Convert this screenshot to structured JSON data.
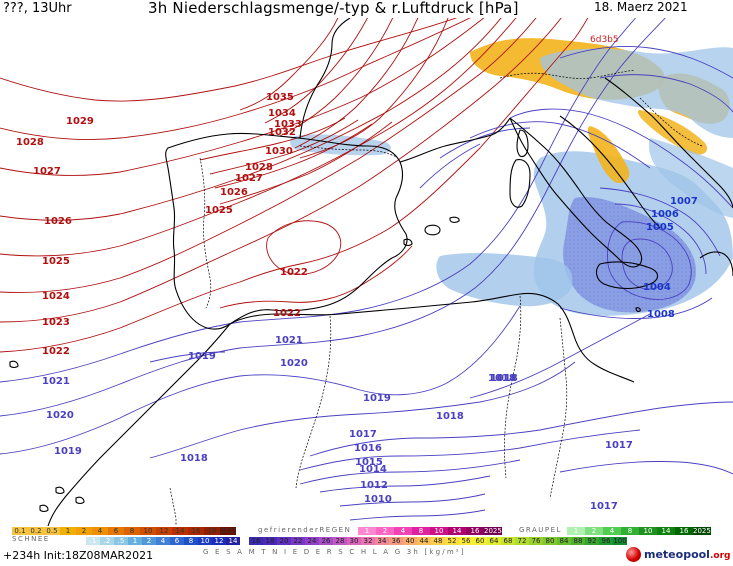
{
  "header": {
    "top_left": "???, 13Uhr",
    "title": "3h Niederschlagsmenge/-typ & r.Luftdruck [hPa]",
    "date": "18. Maerz 2021"
  },
  "map": {
    "high_label": "6d3b5",
    "isobar_labels_red": [
      "1035",
      "1034",
      "1033",
      "1032",
      "1030",
      "1029",
      "1028",
      "1027",
      "1026",
      "1025",
      "1024",
      "1023",
      "1022",
      "1028",
      "1027",
      "1026",
      "1025",
      "1022",
      "1022"
    ],
    "isobar_labels_blue": [
      "1021",
      "1020",
      "1019",
      "1019",
      "1018",
      "1018",
      "1017",
      "1016",
      "1015",
      "1014",
      "1012",
      "1010",
      "1017",
      "1017",
      "1018",
      "1007",
      "1006",
      "1005",
      "1004",
      "1008",
      "1021",
      "1020",
      "1019",
      "1018"
    ]
  },
  "legend": {
    "snow_label": "SCHNEE",
    "freezing_rain_label": "gefrierenderREGEN",
    "graupel_label": "GRAUPEL",
    "total_label": "G E S A M T N I E D E R S C H L A G  3h  [kg/m²]",
    "rain_scale": [
      {
        "t": "0.1",
        "c": "#f5c242"
      },
      {
        "t": "0.2",
        "c": "#f5c242"
      },
      {
        "t": "0.5",
        "c": "#f5c242"
      },
      {
        "t": "1",
        "c": "#f0b000"
      },
      {
        "t": "2",
        "c": "#f0a000"
      },
      {
        "t": "4",
        "c": "#ec9000"
      },
      {
        "t": "6",
        "c": "#e47800"
      },
      {
        "t": "8",
        "c": "#dc6400"
      },
      {
        "t": "10",
        "c": "#d05000"
      },
      {
        "t": "12",
        "c": "#c84000"
      },
      {
        "t": "14",
        "c": "#b83000"
      },
      {
        "t": "16",
        "c": "#a82800"
      },
      {
        "t": "18",
        "c": "#902000"
      },
      {
        "t": "2025+",
        "c": "#6a1000"
      }
    ],
    "freezing_scale": [
      {
        "t": "1",
        "c": "#ff88d0"
      },
      {
        "t": "2",
        "c": "#ff66c4"
      },
      {
        "t": "4",
        "c": "#f044b4"
      },
      {
        "t": "8",
        "c": "#e022a0"
      },
      {
        "t": "10",
        "c": "#cc1088"
      },
      {
        "t": "14",
        "c": "#b00070"
      },
      {
        "t": "16",
        "c": "#900060"
      },
      {
        "t": "2025+",
        "c": "#700050"
      }
    ],
    "graupel_scale": [
      {
        "t": "1",
        "c": "#b0f0b0"
      },
      {
        "t": "2",
        "c": "#80e080"
      },
      {
        "t": "4",
        "c": "#50cc50"
      },
      {
        "t": "8",
        "c": "#30b030"
      },
      {
        "t": "10",
        "c": "#209020"
      },
      {
        "t": "14",
        "c": "#108010"
      },
      {
        "t": "16",
        "c": "#006800"
      },
      {
        "t": "2025+",
        "c": "#004800"
      }
    ],
    "snow_scale": [
      {
        "t": ".1",
        "c": "#cce6f0"
      },
      {
        "t": ".2",
        "c": "#aad6ea"
      },
      {
        "t": ".5",
        "c": "#88c6e4"
      },
      {
        "t": "1",
        "c": "#66b0e0"
      },
      {
        "t": "2",
        "c": "#5098dc"
      },
      {
        "t": "4",
        "c": "#4080d6"
      },
      {
        "t": "6",
        "c": "#3066d0"
      },
      {
        "t": "8",
        "c": "#2050c8"
      },
      {
        "t": "10",
        "c": "#1c3cc0"
      },
      {
        "t": "12",
        "c": "#1a2cb8"
      },
      {
        "t": "14",
        "c": "#2020a0"
      }
    ],
    "total_scale": [
      {
        "t": "16",
        "c": "#3a2ab0"
      },
      {
        "t": "18",
        "c": "#4a28b8"
      },
      {
        "t": "20",
        "c": "#6030c0"
      },
      {
        "t": "22",
        "c": "#7838c4"
      },
      {
        "t": "24",
        "c": "#9040c8"
      },
      {
        "t": "26",
        "c": "#a84cc8"
      },
      {
        "t": "28",
        "c": "#c058c4"
      },
      {
        "t": "30",
        "c": "#d864bc"
      },
      {
        "t": "32",
        "c": "#e874b0"
      },
      {
        "t": "34",
        "c": "#f08898"
      },
      {
        "t": "36",
        "c": "#f49a80"
      },
      {
        "t": "40",
        "c": "#f8ac6a"
      },
      {
        "t": "44",
        "c": "#fabe5a"
      },
      {
        "t": "48",
        "c": "#fcd04c"
      },
      {
        "t": "52",
        "c": "#fde040"
      },
      {
        "t": "56",
        "c": "#fcec38"
      },
      {
        "t": "60",
        "c": "#f2f030"
      },
      {
        "t": "64",
        "c": "#e0ec30"
      },
      {
        "t": "68",
        "c": "#c8e430"
      },
      {
        "t": "72",
        "c": "#b0dc30"
      },
      {
        "t": "76",
        "c": "#98d030"
      },
      {
        "t": "80",
        "c": "#80c630"
      },
      {
        "t": "84",
        "c": "#68bc30"
      },
      {
        "t": "88",
        "c": "#50b030"
      },
      {
        "t": "92",
        "c": "#38a430"
      },
      {
        "t": "96",
        "c": "#209830"
      },
      {
        "t": "100",
        "c": "#108c30"
      }
    ]
  },
  "footer": {
    "run": "+234h  Init:18Z08MAR2021",
    "brand": "meteopool",
    "brand_tld": ".org"
  },
  "colors": {
    "isobar_high": "#b01010",
    "isobar_low": "#4a40c0",
    "coast": "#000000",
    "precip_rain": "#f2b31c",
    "precip_snow": "#9fc4e8",
    "precip_mix": "#7c8ee0"
  }
}
